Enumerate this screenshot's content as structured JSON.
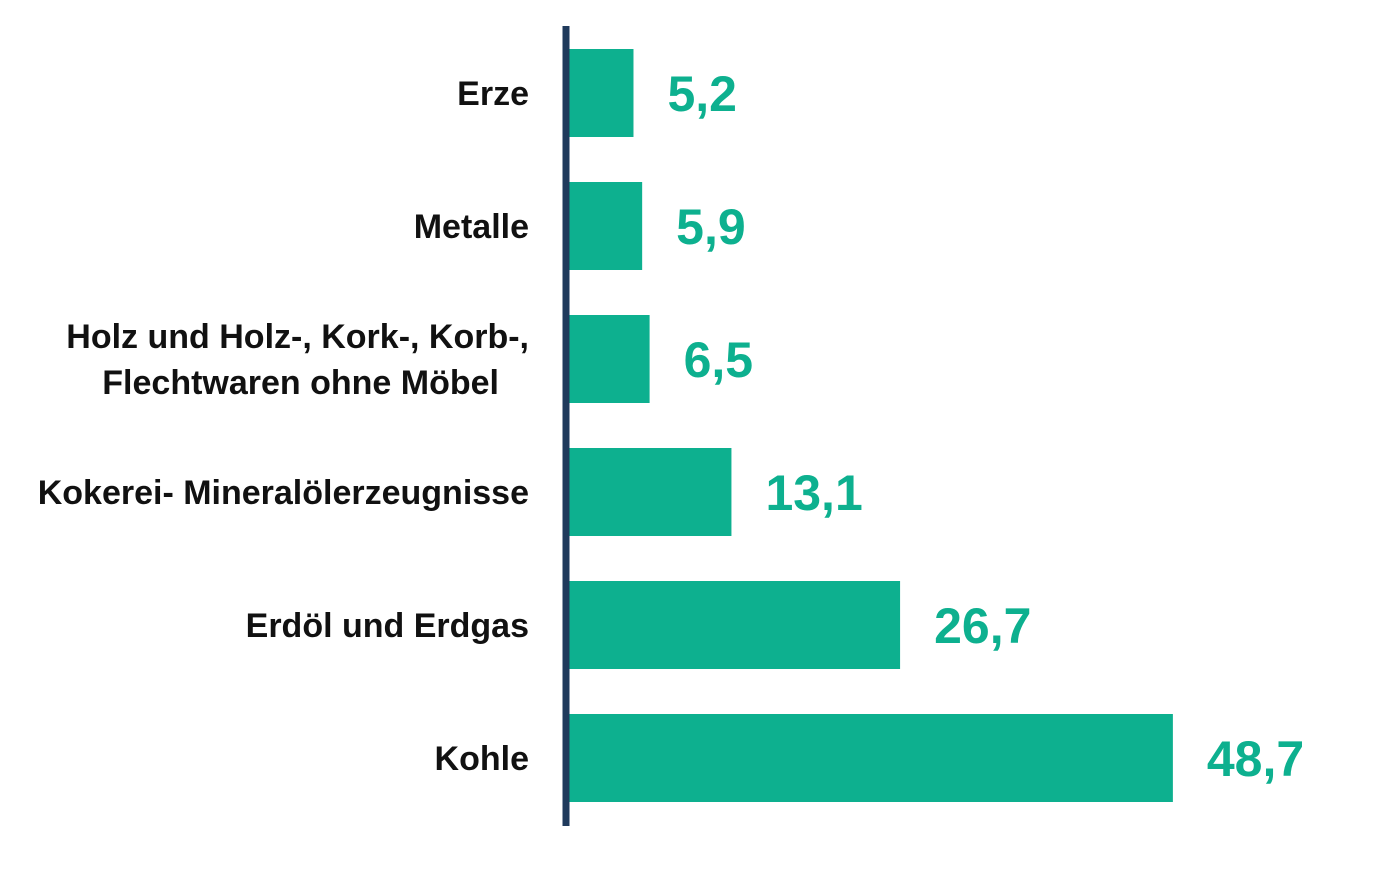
{
  "chart_data": {
    "type": "bar",
    "orientation": "horizontal",
    "title": "",
    "xlabel": "",
    "ylabel": "",
    "categories": [
      [
        "Erze"
      ],
      [
        "Metalle"
      ],
      [
        "Holz und Holz-, Kork-, Korb-,",
        "Flechtwaren ohne Möbel"
      ],
      [
        "Kokerei- Mineralölerzeugnisse"
      ],
      [
        "Erdöl und Erdgas"
      ],
      [
        "Kohle"
      ]
    ],
    "values": [
      5.2,
      5.9,
      6.5,
      13.1,
      26.7,
      48.7
    ],
    "value_labels": [
      "5,2",
      "5,9",
      "6,5",
      "13,1",
      "26,7",
      "48,7"
    ],
    "xlim": [
      0,
      50
    ],
    "grid": false,
    "legend": "none"
  },
  "colors": {
    "bar": "#0db08f",
    "value_text": "#0db08f",
    "axis": "#1f3a5c"
  }
}
